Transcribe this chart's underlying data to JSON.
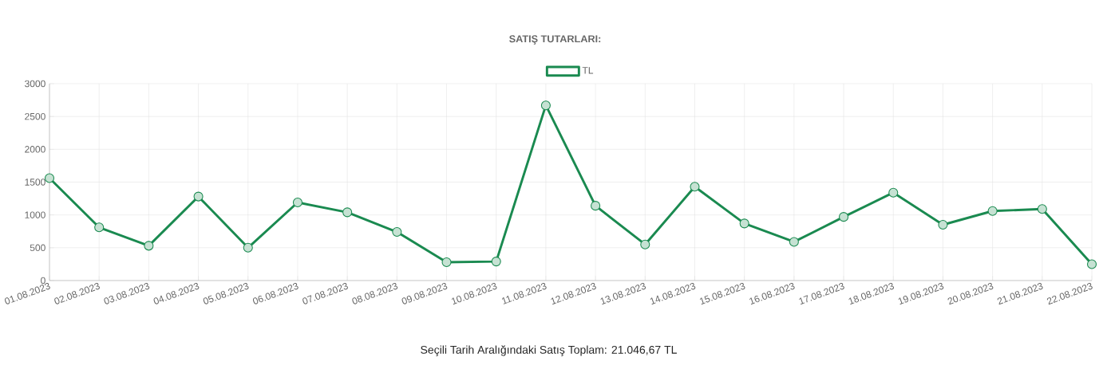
{
  "chart_data": {
    "type": "line",
    "title": "SATIŞ TUTARLARI:",
    "categories": [
      "01.08.2023",
      "02.08.2023",
      "03.08.2023",
      "04.08.2023",
      "05.08.2023",
      "06.08.2023",
      "07.08.2023",
      "08.08.2023",
      "09.08.2023",
      "10.08.2023",
      "11.08.2023",
      "12.08.2023",
      "13.08.2023",
      "14.08.2023",
      "15.08.2023",
      "16.08.2023",
      "17.08.2023",
      "18.08.2023",
      "19.08.2023",
      "20.08.2023",
      "21.08.2023",
      "22.08.2023"
    ],
    "series": [
      {
        "name": "TL",
        "color": "#1a8a50",
        "values": [
          1560,
          810,
          530,
          1280,
          500,
          1190,
          1040,
          740,
          280,
          290,
          2670,
          1140,
          550,
          1430,
          870,
          590,
          970,
          1340,
          850,
          1060,
          1090,
          250
        ]
      }
    ],
    "ylim": [
      0,
      3000
    ],
    "yticks": [
      0,
      500,
      1000,
      1500,
      2000,
      2500,
      3000
    ],
    "grid": true,
    "legend": "top",
    "marker": "circle",
    "line_style": "solid",
    "annotations": [
      "Seçili Tarih Aralığındaki Satış Toplam: 21.046,67 TL"
    ]
  }
}
